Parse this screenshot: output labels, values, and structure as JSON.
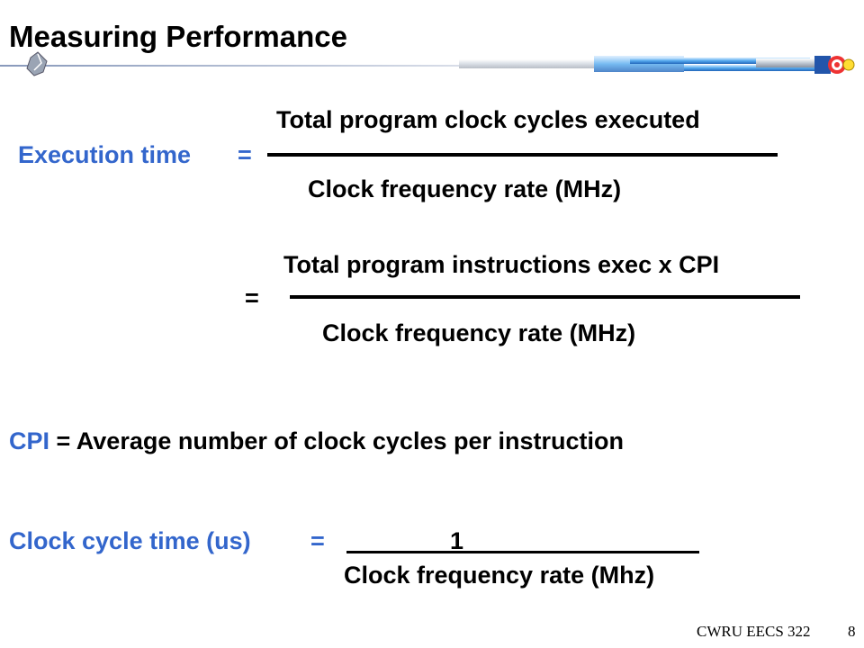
{
  "slide": {
    "title": "Measuring Performance",
    "colors": {
      "accent_blue": "#3366cc",
      "text": "#000000"
    },
    "decoration": {
      "icon": "shield-logo-icon",
      "header_bar": "blue-cylinder-bar"
    }
  },
  "formula1": {
    "lhs": "Execution time",
    "equals": "=",
    "numerator": "Total program clock cycles executed",
    "denominator": "Clock frequency rate (MHz)"
  },
  "formula2": {
    "equals": "=",
    "numerator": "Total program instructions exec x CPI",
    "denominator": "Clock frequency rate (MHz)"
  },
  "cpi_def": {
    "term": "CPI",
    "definition": "= Average number of clock cycles per instruction"
  },
  "formula3": {
    "lhs": "Clock cycle time (us)",
    "equals": "=",
    "numerator": "1",
    "denominator": "Clock frequency rate (Mhz)"
  },
  "footer": {
    "course": "CWRU EECS 322",
    "page": "8"
  }
}
